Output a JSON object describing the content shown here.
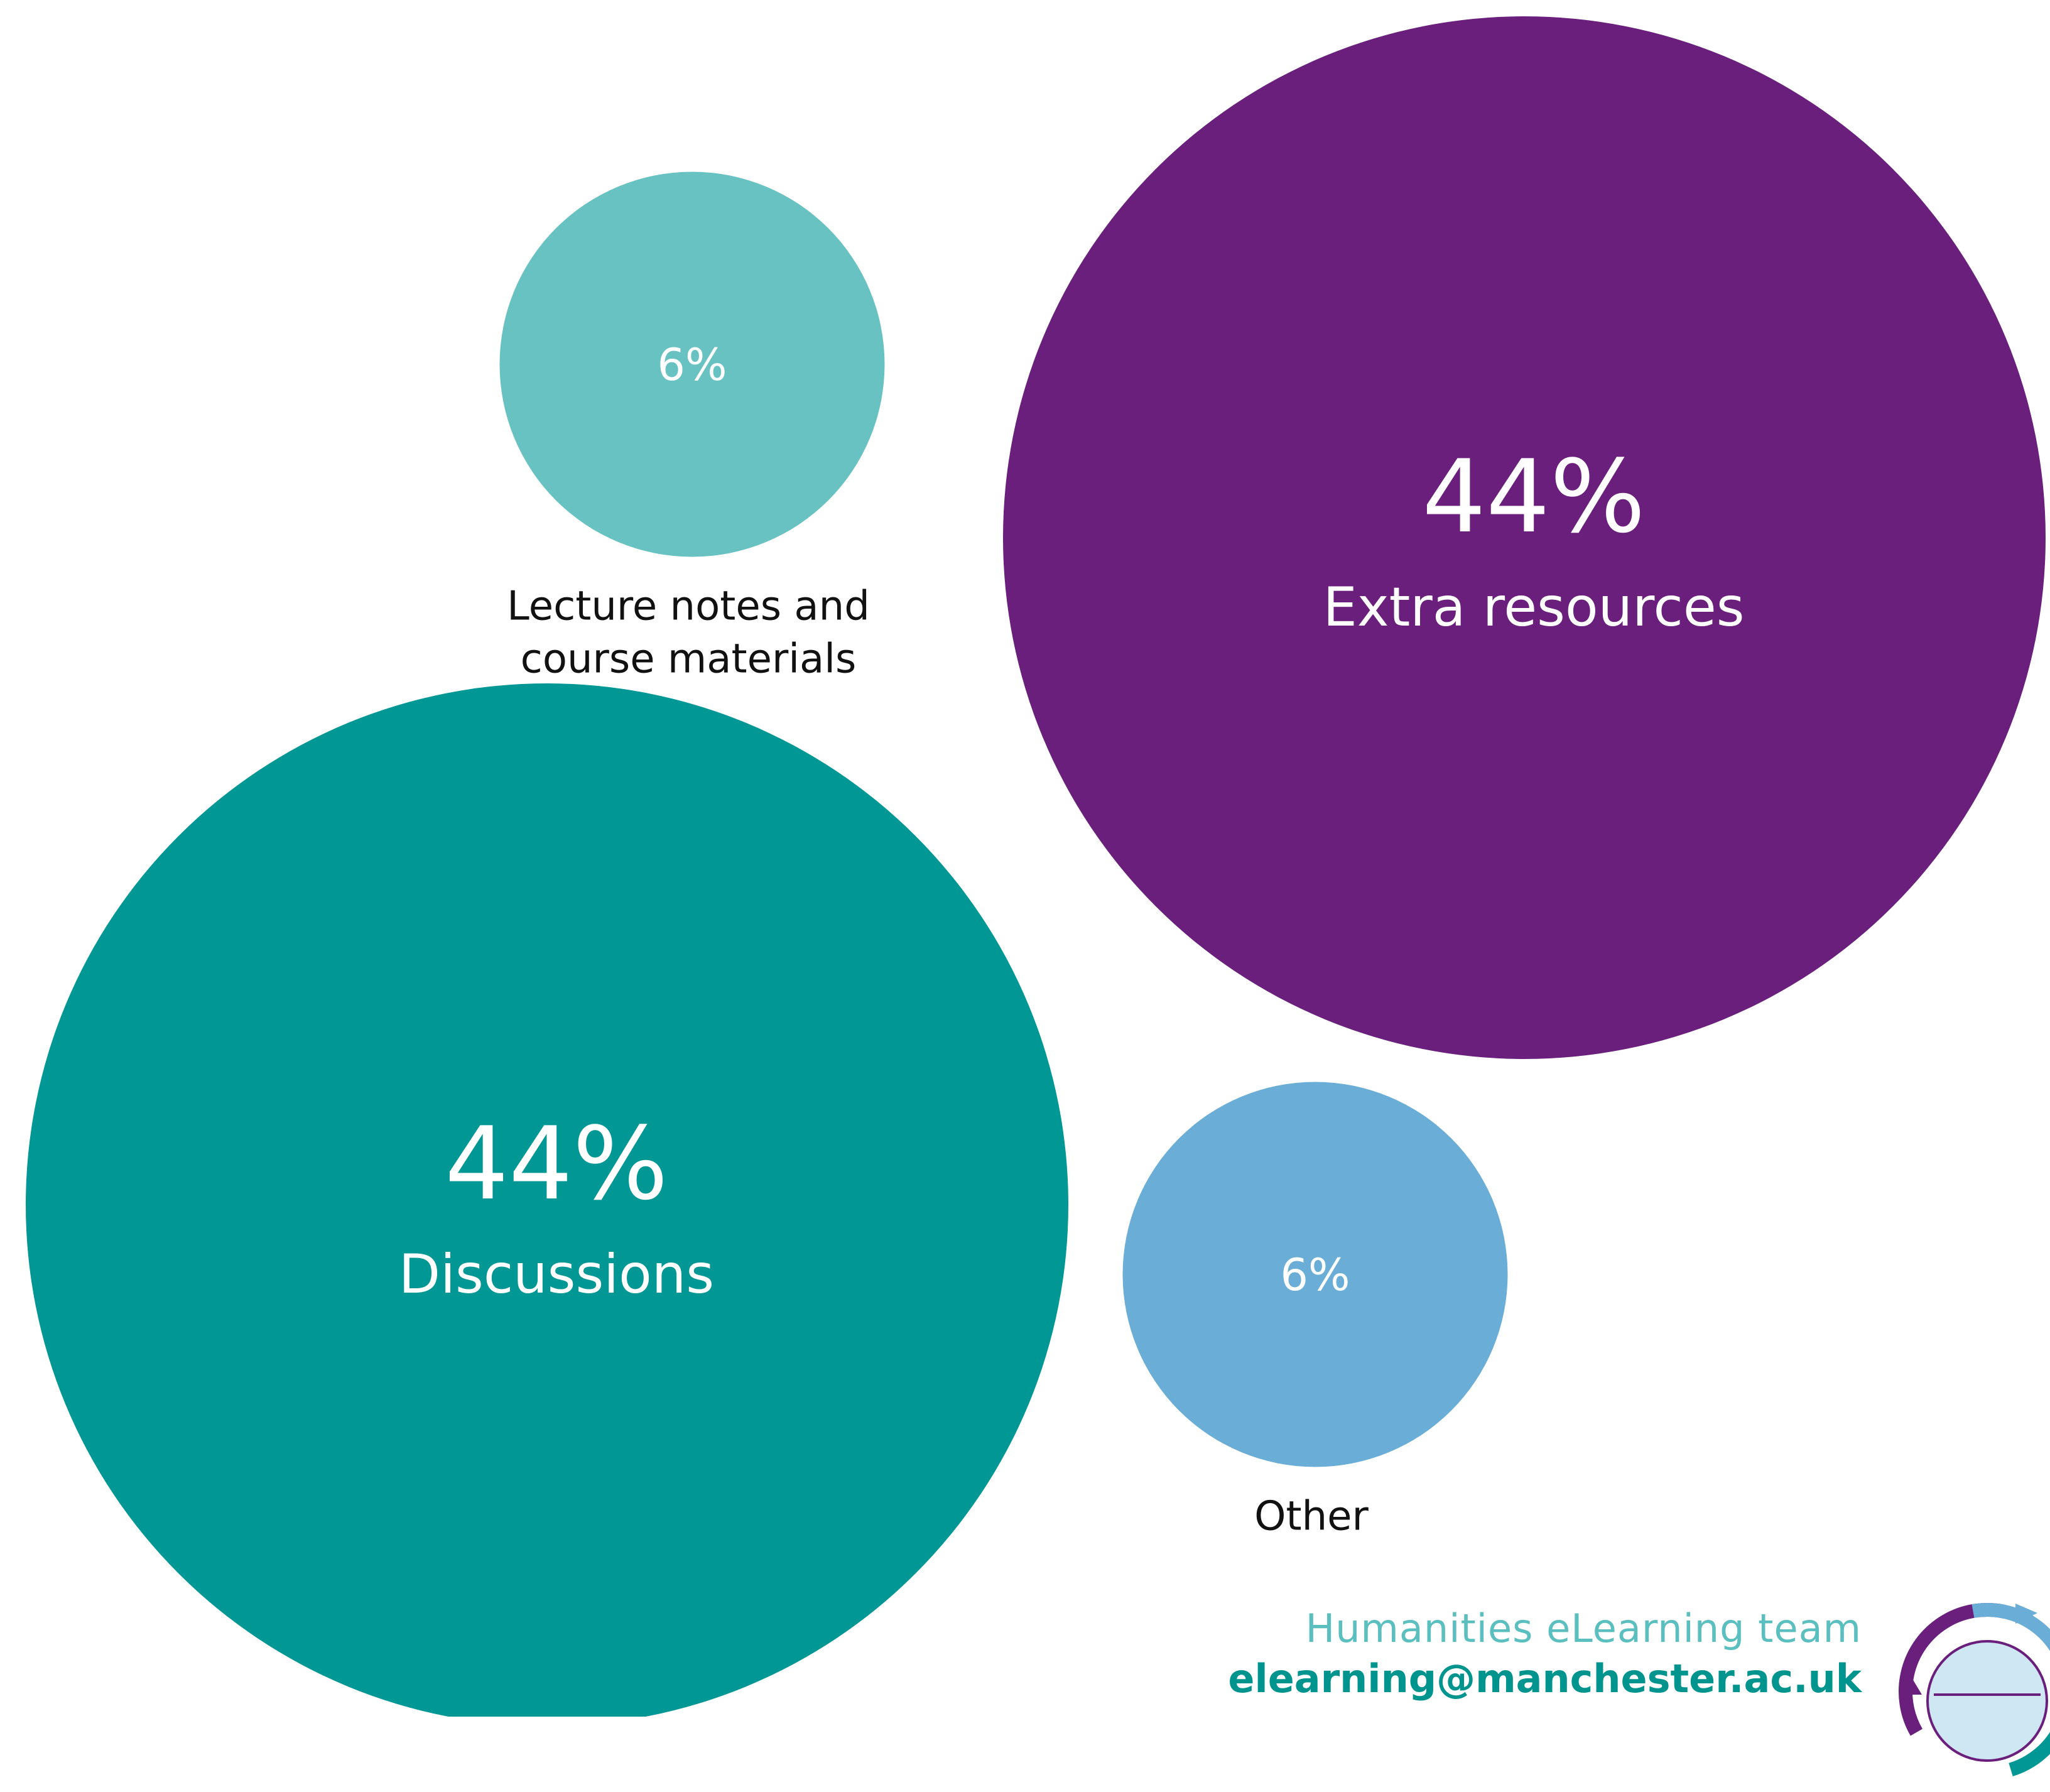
{
  "chart_data": {
    "type": "bubble",
    "series": [
      {
        "name": "Extra resources",
        "value": 44,
        "label": "44%",
        "label_lines": [
          "Extra resources"
        ],
        "color": "#6a1f7c",
        "label_position": "inside"
      },
      {
        "name": "Discussions",
        "value": 44,
        "label": "44%",
        "label_lines": [
          "Discussions"
        ],
        "color": "#009795",
        "label_position": "inside"
      },
      {
        "name": "Lecture notes and course materials",
        "value": 6,
        "label": "6%",
        "label_lines": [
          "Lecture notes and",
          "course materials"
        ],
        "color": "#69c2c2",
        "label_position": "below"
      },
      {
        "name": "Other",
        "value": 6,
        "label": "6%",
        "label_lines": [
          "Other"
        ],
        "color": "#6aaed8",
        "label_position": "below"
      }
    ]
  },
  "footer": {
    "team": "Humanities eLearning team",
    "email": "elearning@manchester.ac.uk"
  },
  "logo": {
    "icon": "elearning-cycle-logo",
    "colors": {
      "outer_purple": "#6a1f7c",
      "outer_teal": "#009795",
      "outer_blue": "#6aaed8",
      "inner_fill": "#cfe6f3"
    }
  }
}
